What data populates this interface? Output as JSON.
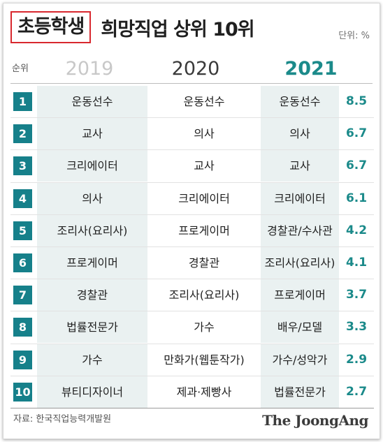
{
  "header": {
    "title_highlight": "초등학생",
    "title_rest": "희망직업 상위 10위",
    "unit": "단위: %"
  },
  "columns": {
    "rank": "순위",
    "y2019": "2019",
    "y2020": "2020",
    "y2021": "2021"
  },
  "chart_data": {
    "type": "table",
    "columns": [
      "순위",
      "2019",
      "2020",
      "2021",
      "2021 %"
    ],
    "rows": [
      {
        "rank": "1",
        "y2019": "운동선수",
        "y2020": "운동선수",
        "y2021": "운동선수",
        "pct": "8.5"
      },
      {
        "rank": "2",
        "y2019": "교사",
        "y2020": "의사",
        "y2021": "의사",
        "pct": "6.7"
      },
      {
        "rank": "3",
        "y2019": "크리에이터",
        "y2020": "교사",
        "y2021": "교사",
        "pct": "6.7"
      },
      {
        "rank": "4",
        "y2019": "의사",
        "y2020": "크리에이터",
        "y2021": "크리에이터",
        "pct": "6.1"
      },
      {
        "rank": "5",
        "y2019": "조리사(요리사)",
        "y2020": "프로게이머",
        "y2021": "경찰관/수사관",
        "pct": "4.2"
      },
      {
        "rank": "6",
        "y2019": "프로게이머",
        "y2020": "경찰관",
        "y2021": "조리사(요리사)",
        "pct": "4.1"
      },
      {
        "rank": "7",
        "y2019": "경찰관",
        "y2020": "조리사(요리사)",
        "y2021": "프로게이머",
        "pct": "3.7"
      },
      {
        "rank": "8",
        "y2019": "법률전문가",
        "y2020": "가수",
        "y2021": "배우/모델",
        "pct": "3.3"
      },
      {
        "rank": "9",
        "y2019": "가수",
        "y2020": "만화가(웹툰작가)",
        "y2021": "가수/성악가",
        "pct": "2.9"
      },
      {
        "rank": "10",
        "y2019": "뷰티디자이너",
        "y2020": "제과·제빵사",
        "y2021": "법률전문가",
        "pct": "2.7"
      }
    ]
  },
  "footer": {
    "source": "자료: 한국직업능력개발원",
    "brand": "The JoongAng"
  },
  "colors": {
    "accent": "#16808a",
    "highlight_border": "#d8282e",
    "shade": "#eaf1f1"
  }
}
